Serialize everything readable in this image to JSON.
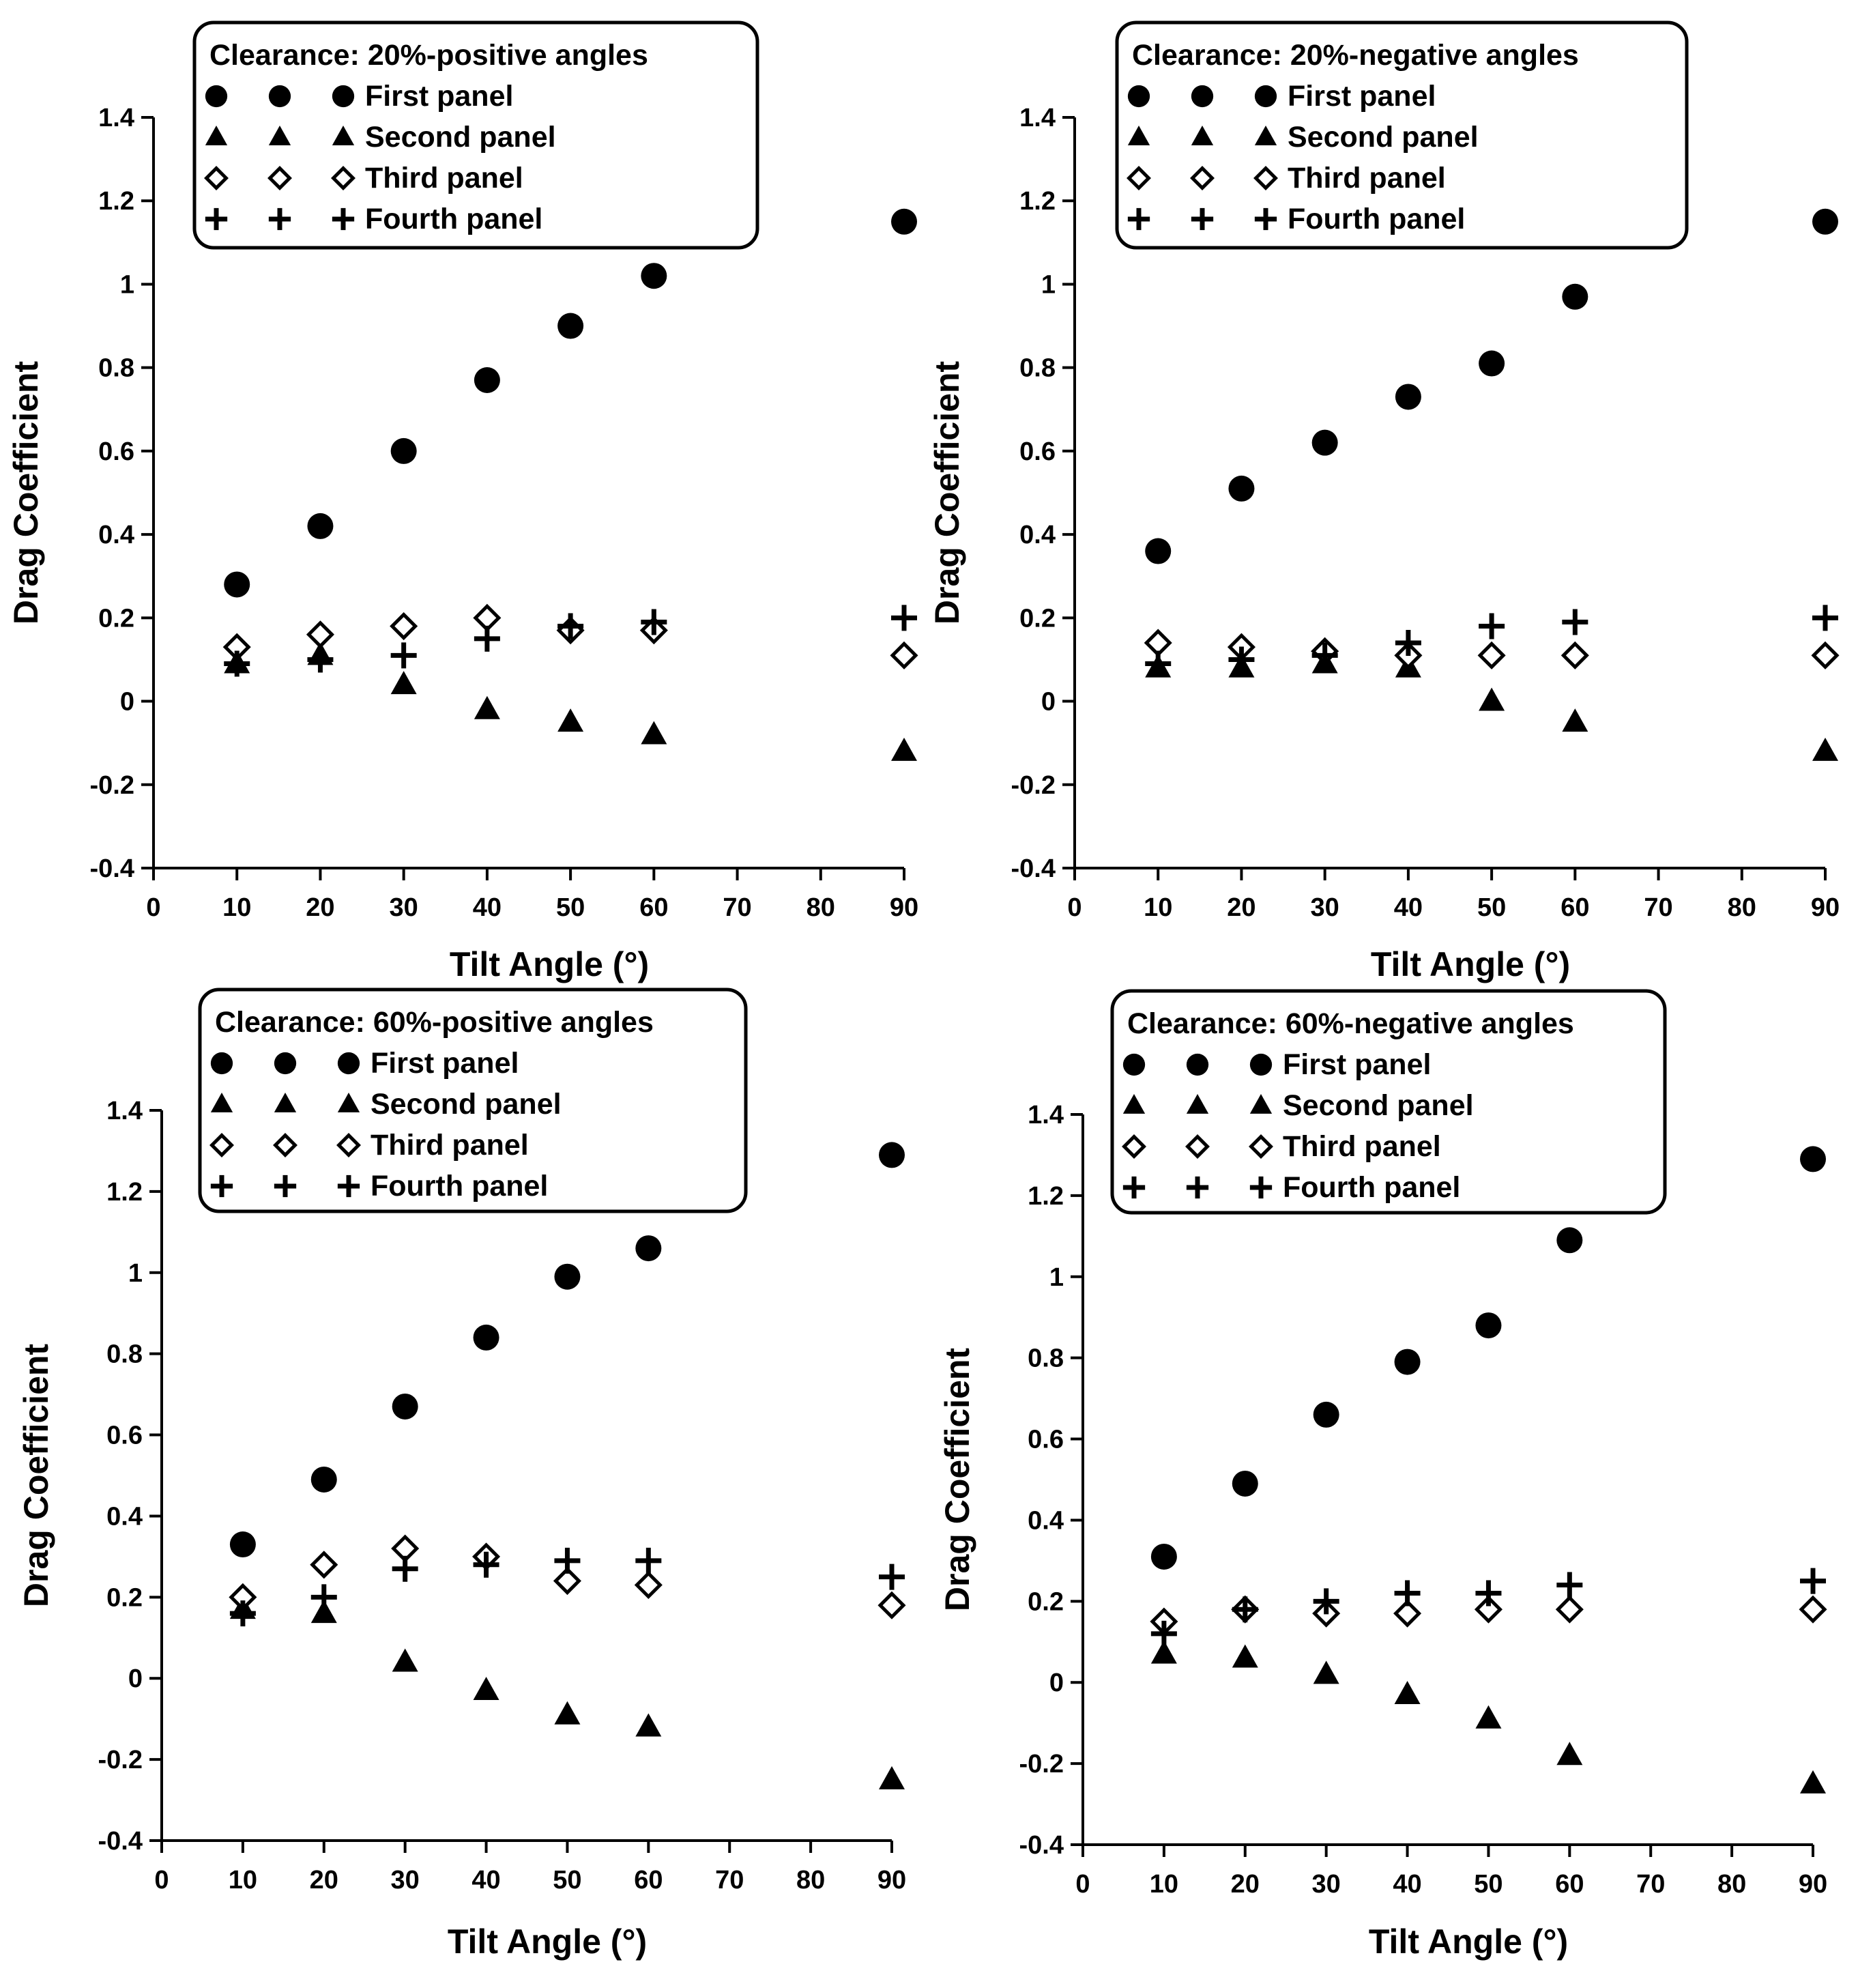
{
  "chart_data": [
    {
      "type": "scatter",
      "title": "Clearance: 20%-positive angles",
      "xlabel": "Tilt Angle (°)",
      "ylabel": "Drag Coefficient",
      "xlim": [
        0,
        90
      ],
      "ylim": [
        -0.4,
        1.4
      ],
      "xticks": [
        "0",
        "10",
        "20",
        "30",
        "40",
        "50",
        "60",
        "70",
        "80",
        "90"
      ],
      "yticks": [
        "-0.4",
        "-0.2",
        "0",
        "0.2",
        "0.4",
        "0.6",
        "0.8",
        "1",
        "1.2",
        "1.4"
      ],
      "x": [
        10,
        20,
        30,
        40,
        50,
        60,
        90
      ],
      "legend_position": "top",
      "series": [
        {
          "name": "First panel",
          "marker": "circle",
          "values": [
            0.28,
            0.42,
            0.6,
            0.77,
            0.9,
            1.02,
            1.15
          ]
        },
        {
          "name": "Second panel",
          "marker": "triangle",
          "values": [
            0.09,
            0.11,
            0.04,
            -0.02,
            -0.05,
            -0.08,
            -0.12
          ]
        },
        {
          "name": "Third panel",
          "marker": "diamond",
          "values": [
            0.13,
            0.16,
            0.18,
            0.2,
            0.17,
            0.17,
            0.11
          ]
        },
        {
          "name": "Fourth panel",
          "marker": "plus",
          "values": [
            0.09,
            0.1,
            0.11,
            0.15,
            0.18,
            0.19,
            0.2
          ]
        }
      ]
    },
    {
      "type": "scatter",
      "title": "Clearance: 20%-negative angles",
      "xlabel": "Tilt Angle (°)",
      "ylabel": "Drag Coefficient",
      "xlim": [
        0,
        90
      ],
      "ylim": [
        -0.4,
        1.4
      ],
      "xticks": [
        "0",
        "10",
        "20",
        "30",
        "40",
        "50",
        "60",
        "70",
        "80",
        "90"
      ],
      "yticks": [
        "-0.4",
        "-0.2",
        "0",
        "0.2",
        "0.4",
        "0.6",
        "0.8",
        "1",
        "1.2",
        "1.4"
      ],
      "x": [
        10,
        20,
        30,
        40,
        50,
        60,
        90
      ],
      "legend_position": "top",
      "series": [
        {
          "name": "First panel",
          "marker": "circle",
          "values": [
            0.36,
            0.51,
            0.62,
            0.73,
            0.81,
            0.97,
            1.15
          ]
        },
        {
          "name": "Second panel",
          "marker": "triangle",
          "values": [
            0.08,
            0.08,
            0.09,
            0.08,
            0.0,
            -0.05,
            -0.12
          ]
        },
        {
          "name": "Third panel",
          "marker": "diamond",
          "values": [
            0.14,
            0.13,
            0.12,
            0.11,
            0.11,
            0.11,
            0.11
          ]
        },
        {
          "name": "Fourth panel",
          "marker": "plus",
          "values": [
            0.09,
            0.1,
            0.11,
            0.14,
            0.18,
            0.19,
            0.2
          ]
        }
      ]
    },
    {
      "type": "scatter",
      "title": "Clearance: 60%-positive angles",
      "xlabel": "Tilt Angle (°)",
      "ylabel": "Drag Coefficient",
      "xlim": [
        0,
        90
      ],
      "ylim": [
        -0.4,
        1.4
      ],
      "xticks": [
        "0",
        "10",
        "20",
        "30",
        "40",
        "50",
        "60",
        "70",
        "80",
        "90"
      ],
      "yticks": [
        "-0.4",
        "-0.2",
        "0",
        "0.2",
        "0.4",
        "0.6",
        "0.8",
        "1",
        "1.2",
        "1.4"
      ],
      "x": [
        10,
        20,
        30,
        40,
        50,
        60,
        90
      ],
      "legend_position": "top",
      "series": [
        {
          "name": "First panel",
          "marker": "circle",
          "values": [
            0.33,
            0.49,
            0.67,
            0.84,
            0.99,
            1.06,
            1.29
          ]
        },
        {
          "name": "Second panel",
          "marker": "triangle",
          "values": [
            0.17,
            0.16,
            0.04,
            -0.03,
            -0.09,
            -0.12,
            -0.25
          ]
        },
        {
          "name": "Third panel",
          "marker": "diamond",
          "values": [
            0.2,
            0.28,
            0.32,
            0.3,
            0.24,
            0.23,
            0.18
          ]
        },
        {
          "name": "Fourth panel",
          "marker": "plus",
          "values": [
            0.16,
            0.2,
            0.27,
            0.28,
            0.29,
            0.29,
            0.25
          ]
        }
      ]
    },
    {
      "type": "scatter",
      "title": "Clearance: 60%-negative angles",
      "xlabel": "Tilt Angle (°)",
      "ylabel": "Drag Coefficient",
      "xlim": [
        0,
        90
      ],
      "ylim": [
        -0.4,
        1.4
      ],
      "xticks": [
        "0",
        "10",
        "20",
        "30",
        "40",
        "50",
        "60",
        "70",
        "80",
        "90"
      ],
      "yticks": [
        "-0.4",
        "-0.2",
        "0",
        "0.2",
        "0.4",
        "0.6",
        "0.8",
        "1",
        "1.2",
        "1.4"
      ],
      "x": [
        10,
        20,
        30,
        40,
        50,
        60,
        90
      ],
      "legend_position": "top",
      "series": [
        {
          "name": "First panel",
          "marker": "circle",
          "values": [
            0.31,
            0.49,
            0.66,
            0.79,
            0.88,
            1.09,
            1.29
          ]
        },
        {
          "name": "Second panel",
          "marker": "triangle",
          "values": [
            0.07,
            0.06,
            0.02,
            -0.03,
            -0.09,
            -0.18,
            -0.25
          ]
        },
        {
          "name": "Third panel",
          "marker": "diamond",
          "values": [
            0.15,
            0.18,
            0.17,
            0.17,
            0.18,
            0.18,
            0.18
          ]
        },
        {
          "name": "Fourth panel",
          "marker": "plus",
          "values": [
            0.12,
            0.18,
            0.2,
            0.22,
            0.22,
            0.24,
            0.25
          ]
        }
      ]
    }
  ]
}
